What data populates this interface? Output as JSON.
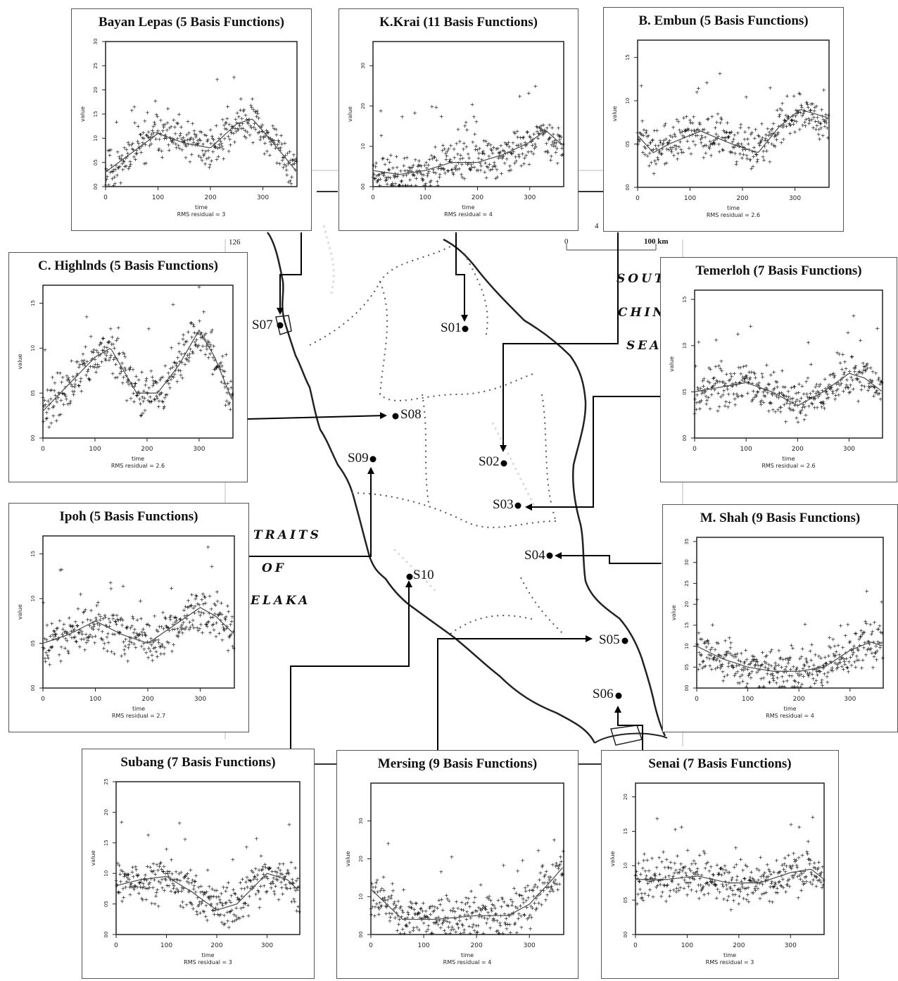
{
  "map": {
    "sea_labels": {
      "south_china_sea": [
        "SOUT",
        "CHIN",
        "SEA"
      ],
      "straits_of_melaka": [
        "TRAITS",
        "OF",
        "ELAKA"
      ]
    },
    "scale": {
      "start": "0",
      "end": "100 km"
    },
    "edge_marks": [
      "126",
      "4"
    ],
    "stations": [
      {
        "id": "S01",
        "label": "S01"
      },
      {
        "id": "S02",
        "label": "S02"
      },
      {
        "id": "S03",
        "label": "S03"
      },
      {
        "id": "S04",
        "label": "S04"
      },
      {
        "id": "S05",
        "label": "S05"
      },
      {
        "id": "S06",
        "label": "S06"
      },
      {
        "id": "S07",
        "label": "S07"
      },
      {
        "id": "S08",
        "label": "S08"
      },
      {
        "id": "S09",
        "label": "S09"
      },
      {
        "id": "S10",
        "label": "S10"
      }
    ]
  },
  "chart_data": [
    {
      "type": "scatter",
      "station": "S07",
      "title": "Bayan Lepas (5 Basis Functions)",
      "xlabel": "time",
      "ylabel": "value",
      "footer": "RMS residual = 3",
      "xticks": [
        "0",
        "100",
        "200",
        "300"
      ],
      "yticks": [
        "00",
        "05",
        "10",
        "15",
        "20",
        "25",
        "30"
      ],
      "xlim": [
        0,
        365
      ],
      "ylim": [
        0,
        30
      ],
      "seed": 11,
      "trend": [
        [
          0,
          3
        ],
        [
          50,
          7
        ],
        [
          100,
          11
        ],
        [
          150,
          9
        ],
        [
          200,
          8
        ],
        [
          250,
          13
        ],
        [
          280,
          14
        ],
        [
          320,
          9
        ],
        [
          365,
          3
        ]
      ]
    },
    {
      "type": "scatter",
      "station": "S01",
      "title": "K.Krai (11 Basis Functions)",
      "xlabel": "time",
      "ylabel": "value",
      "footer": "RMS residual = 4",
      "xticks": [
        "0",
        "100",
        "200",
        "300"
      ],
      "yticks": [
        "00",
        "10",
        "20",
        "30"
      ],
      "xlim": [
        0,
        365
      ],
      "ylim": [
        0,
        36
      ],
      "seed": 23,
      "trend": [
        [
          0,
          4
        ],
        [
          50,
          3
        ],
        [
          100,
          4
        ],
        [
          150,
          6
        ],
        [
          200,
          6
        ],
        [
          250,
          8
        ],
        [
          300,
          11
        ],
        [
          330,
          14
        ],
        [
          365,
          10
        ]
      ]
    },
    {
      "type": "scatter",
      "station": "S02",
      "title": "B. Embun (5 Basis Functions)",
      "xlabel": "time",
      "ylabel": "value",
      "footer": "RMS residual = 2.6",
      "xticks": [
        "0",
        "100",
        "200",
        "300"
      ],
      "yticks": [
        "00",
        "05",
        "10",
        "15"
      ],
      "xlim": [
        0,
        365
      ],
      "ylim": [
        0,
        17
      ],
      "seed": 37,
      "trend": [
        [
          0,
          6
        ],
        [
          30,
          4
        ],
        [
          60,
          5
        ],
        [
          120,
          6.5
        ],
        [
          180,
          5
        ],
        [
          230,
          4
        ],
        [
          270,
          7
        ],
        [
          310,
          9
        ],
        [
          365,
          8
        ]
      ]
    },
    {
      "type": "scatter",
      "station": "S08",
      "title": "C. Highlnds (5 Basis Functions)",
      "xlabel": "time",
      "ylabel": "value",
      "footer": "RMS residual = 2.6",
      "xticks": [
        "0",
        "100",
        "200",
        "300"
      ],
      "yticks": [
        "00",
        "05",
        "10",
        "15"
      ],
      "xlim": [
        0,
        365
      ],
      "ylim": [
        0,
        17
      ],
      "seed": 41,
      "trend": [
        [
          0,
          3
        ],
        [
          50,
          6
        ],
        [
          100,
          9
        ],
        [
          130,
          10
        ],
        [
          180,
          5
        ],
        [
          220,
          5
        ],
        [
          260,
          8
        ],
        [
          300,
          12
        ],
        [
          330,
          9
        ],
        [
          365,
          4
        ]
      ]
    },
    {
      "type": "scatter",
      "station": "S03",
      "title": "Temerloh (7 Basis Functions)",
      "xlabel": "time",
      "ylabel": "value",
      "footer": "RMS residual = 2.6",
      "xticks": [
        "0",
        "100",
        "200",
        "300"
      ],
      "yticks": [
        "00",
        "05",
        "10",
        "15"
      ],
      "xlim": [
        0,
        365
      ],
      "ylim": [
        0,
        16
      ],
      "seed": 53,
      "trend": [
        [
          0,
          5
        ],
        [
          50,
          5.5
        ],
        [
          100,
          6
        ],
        [
          150,
          5
        ],
        [
          200,
          3.5
        ],
        [
          250,
          5
        ],
        [
          300,
          7
        ],
        [
          330,
          6.5
        ],
        [
          365,
          5
        ]
      ]
    },
    {
      "type": "scatter",
      "station": "S09",
      "title": "Ipoh (5 Basis Functions)",
      "xlabel": "time",
      "ylabel": "value",
      "footer": "RMS residual = 2.7",
      "xticks": [
        "0",
        "100",
        "200",
        "300"
      ],
      "yticks": [
        "00",
        "05",
        "10",
        "15"
      ],
      "xlim": [
        0,
        365
      ],
      "ylim": [
        0,
        17
      ],
      "seed": 67,
      "trend": [
        [
          0,
          5
        ],
        [
          50,
          6
        ],
        [
          100,
          7.5
        ],
        [
          150,
          6
        ],
        [
          200,
          5
        ],
        [
          250,
          7
        ],
        [
          300,
          9
        ],
        [
          330,
          8
        ],
        [
          365,
          6
        ]
      ]
    },
    {
      "type": "scatter",
      "station": "S04",
      "title": "M. Shah (9 Basis Functions)",
      "xlabel": "time",
      "ylabel": "value",
      "footer": "RMS residual = 4",
      "xticks": [
        "0",
        "100",
        "200",
        "300"
      ],
      "yticks": [
        "00",
        "05",
        "10",
        "15",
        "20",
        "25",
        "30",
        "35"
      ],
      "xlim": [
        0,
        365
      ],
      "ylim": [
        0,
        36
      ],
      "seed": 79,
      "trend": [
        [
          0,
          10
        ],
        [
          50,
          7
        ],
        [
          100,
          5
        ],
        [
          150,
          4
        ],
        [
          200,
          4
        ],
        [
          250,
          5
        ],
        [
          300,
          9
        ],
        [
          340,
          11
        ],
        [
          365,
          10
        ]
      ]
    },
    {
      "type": "scatter",
      "station": "S10",
      "title": "Subang (7 Basis Functions)",
      "xlabel": "time",
      "ylabel": "value",
      "footer": "RMS residual = 3",
      "xticks": [
        "0",
        "100",
        "200",
        "300"
      ],
      "yticks": [
        "00",
        "05",
        "10",
        "15",
        "20",
        "25"
      ],
      "xlim": [
        0,
        365
      ],
      "ylim": [
        0,
        25
      ],
      "seed": 83,
      "trend": [
        [
          0,
          8
        ],
        [
          50,
          9
        ],
        [
          100,
          9.5
        ],
        [
          150,
          7
        ],
        [
          200,
          4
        ],
        [
          240,
          5
        ],
        [
          300,
          10
        ],
        [
          340,
          9
        ],
        [
          365,
          7
        ]
      ]
    },
    {
      "type": "scatter",
      "station": "S05",
      "title": "Mersing (9 Basis Functions)",
      "xlabel": "time",
      "ylabel": "value",
      "footer": "RMS residual = 4",
      "xticks": [
        "0",
        "100",
        "200",
        "300"
      ],
      "yticks": [
        "00",
        "10",
        "20",
        "30"
      ],
      "xlim": [
        0,
        365
      ],
      "ylim": [
        0,
        40
      ],
      "seed": 97,
      "trend": [
        [
          0,
          12
        ],
        [
          30,
          8
        ],
        [
          60,
          4
        ],
        [
          120,
          4
        ],
        [
          200,
          5
        ],
        [
          260,
          5
        ],
        [
          300,
          8
        ],
        [
          340,
          14
        ],
        [
          365,
          18
        ]
      ]
    },
    {
      "type": "scatter",
      "station": "S06",
      "title": "Senai (7 Basis Functions)",
      "xlabel": "time",
      "ylabel": "value",
      "footer": "RMS residual = 3",
      "xticks": [
        "0",
        "100",
        "200",
        "300"
      ],
      "yticks": [
        "00",
        "05",
        "10",
        "15",
        "20"
      ],
      "xlim": [
        0,
        365
      ],
      "ylim": [
        0,
        22
      ],
      "seed": 101,
      "trend": [
        [
          0,
          8
        ],
        [
          60,
          8
        ],
        [
          120,
          8.5
        ],
        [
          180,
          7.5
        ],
        [
          240,
          7.5
        ],
        [
          300,
          9
        ],
        [
          340,
          9.5
        ],
        [
          365,
          8
        ]
      ]
    }
  ]
}
